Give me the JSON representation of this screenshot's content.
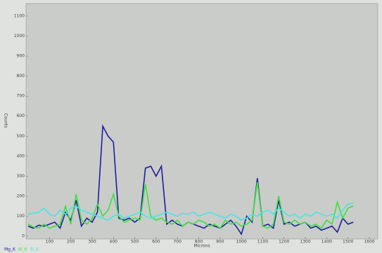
{
  "chart_data": {
    "type": "line",
    "x_label": "Microns",
    "y_label": "Counts",
    "x": [
      0,
      25,
      50,
      75,
      100,
      125,
      150,
      175,
      200,
      225,
      250,
      275,
      300,
      325,
      350,
      375,
      400,
      425,
      450,
      475,
      500,
      525,
      550,
      575,
      600,
      625,
      650,
      675,
      700,
      725,
      750,
      775,
      800,
      825,
      850,
      875,
      900,
      925,
      950,
      975,
      1000,
      1025,
      1050,
      1075,
      1100,
      1125,
      1150,
      1175,
      1200,
      1225,
      1250,
      1275,
      1300,
      1325,
      1350,
      1375,
      1400,
      1425,
      1450,
      1475,
      1500,
      1525
    ],
    "series": [
      {
        "name": "Mg_K",
        "color": "#1e1e9c",
        "values": [
          50,
          40,
          55,
          50,
          60,
          70,
          40,
          120,
          80,
          180,
          50,
          90,
          70,
          120,
          550,
          500,
          470,
          90,
          80,
          90,
          70,
          90,
          340,
          350,
          300,
          350,
          60,
          80,
          60,
          50,
          70,
          60,
          50,
          40,
          60,
          50,
          40,
          60,
          80,
          50,
          10,
          100,
          70,
          290,
          50,
          60,
          40,
          180,
          60,
          70,
          50,
          60,
          70,
          40,
          50,
          30,
          40,
          50,
          20,
          90,
          60,
          70
        ]
      },
      {
        "name": "Al_K",
        "color": "#3ee03e",
        "values": [
          60,
          45,
          40,
          60,
          40,
          50,
          60,
          150,
          60,
          210,
          80,
          60,
          90,
          160,
          100,
          130,
          210,
          100,
          70,
          80,
          90,
          80,
          260,
          100,
          80,
          90,
          70,
          60,
          80,
          50,
          70,
          60,
          80,
          70,
          50,
          60,
          40,
          80,
          60,
          70,
          50,
          60,
          80,
          270,
          50,
          40,
          60,
          200,
          70,
          60,
          80,
          60,
          70,
          50,
          60,
          40,
          80,
          60,
          170,
          90,
          140,
          150
        ]
      },
      {
        "name": "Si_K",
        "color": "#44e6e6",
        "values": [
          110,
          115,
          120,
          140,
          110,
          100,
          130,
          110,
          140,
          150,
          130,
          120,
          110,
          100,
          90,
          80,
          100,
          110,
          90,
          100,
          110,
          120,
          100,
          90,
          100,
          110,
          120,
          110,
          100,
          115,
          110,
          120,
          100,
          110,
          120,
          110,
          100,
          90,
          110,
          100,
          80,
          90,
          110,
          100,
          120,
          130,
          110,
          140,
          120,
          100,
          110,
          90,
          110,
          100,
          120,
          110,
          100,
          110,
          90,
          130,
          160,
          165
        ]
      }
    ],
    "xlim": [
      0,
      1600
    ],
    "xticks": [
      100,
      200,
      300,
      400,
      500,
      600,
      700,
      800,
      900,
      1000,
      1100,
      1200,
      1300,
      1400,
      1500,
      1600
    ],
    "ylim": [
      0,
      1100
    ],
    "yticks": [
      0,
      100,
      200,
      300,
      400,
      500,
      600,
      700,
      800,
      900,
      1000,
      1100
    ]
  }
}
